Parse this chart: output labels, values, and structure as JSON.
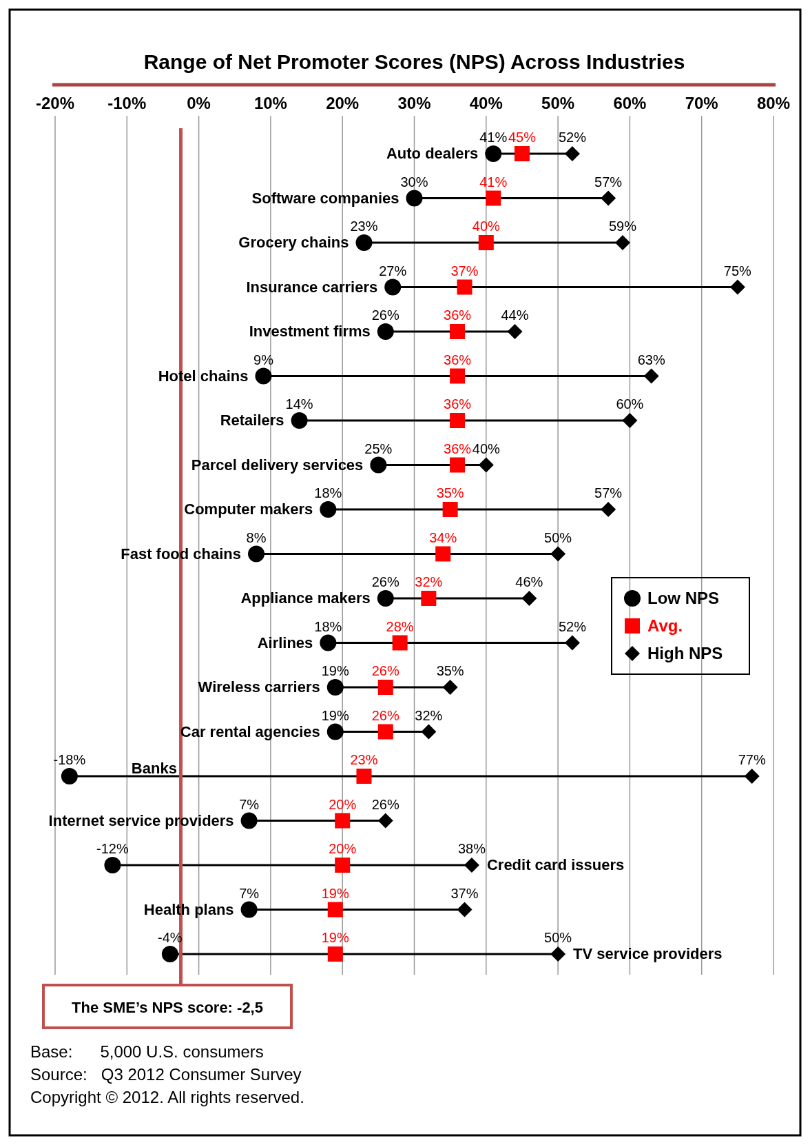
{
  "chart_data": {
    "type": "scatter",
    "orientation": "horizontal",
    "title": "Range of Net Promoter Scores (NPS) Across Industries",
    "categories": [
      "Auto dealers",
      "Software companies",
      "Grocery chains",
      "Insurance carriers",
      "Investment firms",
      "Hotel chains",
      "Retailers",
      "Parcel delivery services",
      "Computer makers",
      "Fast food chains",
      "Appliance makers",
      "Airlines",
      "Wireless carriers",
      "Car rental agencies",
      "Banks",
      "Internet service providers",
      "Credit card issuers",
      "Health plans",
      "TV service providers"
    ],
    "series": [
      {
        "name": "Low NPS",
        "color": "#000000",
        "marker": "circle",
        "values": [
          41,
          30,
          23,
          27,
          26,
          9,
          14,
          25,
          18,
          8,
          26,
          18,
          19,
          19,
          -18,
          7,
          -12,
          7,
          -4
        ],
        "value_labels": [
          "41%",
          "30%",
          "23%",
          "27%",
          "26%",
          "9%",
          "14%",
          "25%",
          "18%",
          "8%",
          "26%",
          "18%",
          "19%",
          "19%",
          "-18%",
          "7%",
          "-12%",
          "7%",
          "-4%"
        ]
      },
      {
        "name": "Avg.",
        "color": "#ff0000",
        "marker": "square",
        "values": [
          45,
          41,
          40,
          37,
          36,
          36,
          36,
          36,
          35,
          34,
          32,
          28,
          26,
          26,
          23,
          20,
          20,
          19,
          19
        ],
        "value_labels": [
          "45%",
          "41%",
          "40%",
          "37%",
          "36%",
          "36%",
          "36%",
          "36%",
          "35%",
          "34%",
          "32%",
          "28%",
          "26%",
          "26%",
          "23%",
          "20%",
          "20%",
          "19%",
          "19%"
        ]
      },
      {
        "name": "High NPS",
        "color": "#000000",
        "marker": "diamond",
        "values": [
          52,
          57,
          59,
          75,
          44,
          63,
          60,
          40,
          57,
          50,
          46,
          52,
          35,
          32,
          77,
          26,
          38,
          37,
          50
        ],
        "value_labels": [
          "52%",
          "57%",
          "59%",
          "75%",
          "44%",
          "63%",
          "60%",
          "40%",
          "57%",
          "50%",
          "46%",
          "52%",
          "35%",
          "32%",
          "77%",
          "26%",
          "38%",
          "37%",
          "50%"
        ]
      }
    ],
    "xlim": [
      -20,
      80
    ],
    "xticks": [
      {
        "value": -20,
        "label": "-20%"
      },
      {
        "value": -10,
        "label": "-10%"
      },
      {
        "value": 0,
        "label": "0%"
      },
      {
        "value": 10,
        "label": "10%"
      },
      {
        "value": 20,
        "label": "20%"
      },
      {
        "value": 30,
        "label": "30%"
      },
      {
        "value": 40,
        "label": "40%"
      },
      {
        "value": 50,
        "label": "50%"
      },
      {
        "value": 60,
        "label": "60%"
      },
      {
        "value": 70,
        "label": "70%"
      },
      {
        "value": 80,
        "label": "80%"
      }
    ],
    "grid": "x",
    "legend": "right",
    "ref_lines": [
      {
        "axis": "x",
        "value": -2.5,
        "label": "The SME’s NPS score: -2,5",
        "color": "#c0504d"
      }
    ],
    "annotations": [
      "Base:      5,000 U.S. consumers",
      "Source:   Q3 2012 Consumer Survey",
      "Copyright © 2012. All rights reserved."
    ]
  }
}
